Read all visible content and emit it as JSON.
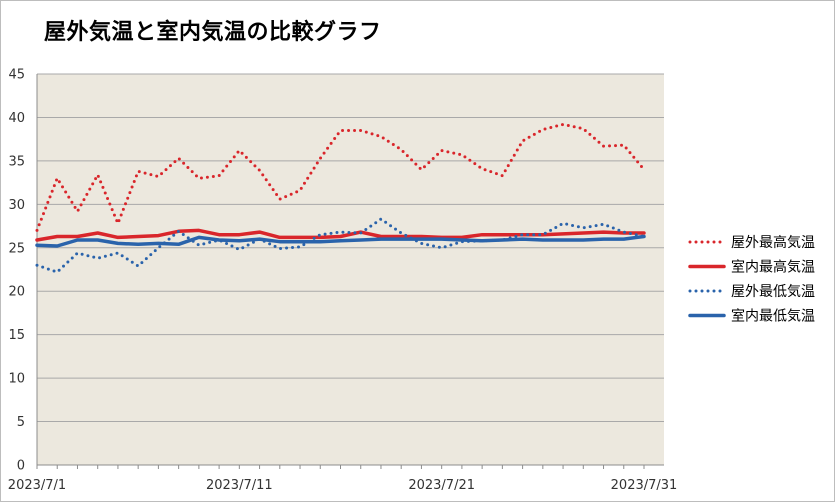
{
  "chart_data": {
    "type": "line",
    "title": "屋外気温と室内気温の比較グラフ",
    "xlabel": "",
    "ylabel": "",
    "ylim": [
      0,
      45
    ],
    "yticks": [
      0,
      5,
      10,
      15,
      20,
      25,
      30,
      35,
      40,
      45
    ],
    "xtick_labels": [
      "2023/7/1",
      "2023/7/11",
      "2023/7/21",
      "2023/7/31"
    ],
    "xtick_days": [
      1,
      11,
      21,
      31
    ],
    "x": [
      1,
      2,
      3,
      4,
      5,
      6,
      7,
      8,
      9,
      10,
      11,
      12,
      13,
      14,
      15,
      16,
      17,
      18,
      19,
      20,
      21,
      22,
      23,
      24,
      25,
      26,
      27,
      28,
      29,
      30,
      31
    ],
    "grid": true,
    "plot_background": "#ece8de",
    "legend_position": "right",
    "series": [
      {
        "name": "屋外最高気温",
        "style": "dotted",
        "color": "#d9262b",
        "values": [
          27.0,
          33.0,
          29.2,
          33.4,
          27.8,
          33.8,
          33.2,
          35.3,
          33.0,
          33.3,
          36.2,
          33.9,
          30.6,
          31.6,
          35.3,
          38.5,
          38.5,
          37.8,
          36.3,
          34.0,
          36.2,
          35.7,
          34.1,
          33.3,
          37.3,
          38.6,
          39.2,
          38.7,
          36.7,
          36.8,
          34.0
        ]
      },
      {
        "name": "室内最高気温",
        "style": "solid",
        "color": "#d9262b",
        "values": [
          25.9,
          26.3,
          26.3,
          26.7,
          26.2,
          26.3,
          26.4,
          26.9,
          27.0,
          26.5,
          26.5,
          26.8,
          26.2,
          26.2,
          26.2,
          26.3,
          26.8,
          26.3,
          26.3,
          26.3,
          26.2,
          26.2,
          26.5,
          26.5,
          26.5,
          26.5,
          26.6,
          26.7,
          26.8,
          26.7,
          26.7
        ]
      },
      {
        "name": "屋外最低気温",
        "style": "dotted",
        "color": "#2a63ab",
        "values": [
          23.0,
          22.2,
          24.4,
          23.8,
          24.4,
          22.9,
          25.0,
          26.9,
          25.3,
          25.9,
          24.8,
          26.0,
          24.9,
          25.1,
          26.5,
          26.8,
          26.7,
          28.3,
          26.7,
          25.5,
          25.0,
          25.7,
          25.8,
          25.9,
          26.5,
          26.5,
          27.8,
          27.3,
          27.7,
          26.8,
          26.3
        ]
      },
      {
        "name": "室内最低気温",
        "style": "solid",
        "color": "#2a63ab",
        "values": [
          25.3,
          25.2,
          25.9,
          25.9,
          25.5,
          25.4,
          25.5,
          25.4,
          26.2,
          25.9,
          25.8,
          26.0,
          25.7,
          25.7,
          25.7,
          25.8,
          25.9,
          26.0,
          26.0,
          26.0,
          26.0,
          25.9,
          25.8,
          25.9,
          26.0,
          25.9,
          25.9,
          25.9,
          26.0,
          26.0,
          26.3
        ]
      }
    ]
  }
}
